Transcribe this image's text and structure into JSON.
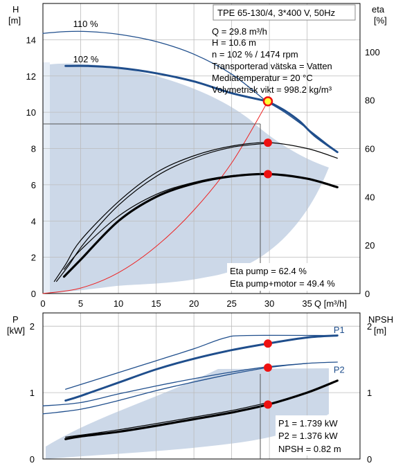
{
  "colors": {
    "region_fill": "#ccd8e8",
    "region_light": "#e6edf6",
    "curve_blue": "#1f4e8c",
    "curve_black": "#000000",
    "system_curve": "#ee2222",
    "marker_red": "#ee1111",
    "marker_yellow": "#ffff33",
    "grid": "#bbbbbb"
  },
  "chart_data": [
    {
      "id": "top",
      "type": "line",
      "title": "TPE 65-130/4, 3*400 V, 50Hz",
      "y_left_label": [
        "H",
        "[m]"
      ],
      "y_right_label": [
        "eta",
        "[%]"
      ],
      "xlabel": "Q [m³/h]",
      "xlim": [
        0,
        42
      ],
      "x_ticks": [
        0,
        5,
        10,
        15,
        20,
        25,
        30,
        35
      ],
      "ylim_left": [
        0,
        16
      ],
      "y_left_ticks": [
        0,
        2,
        4,
        6,
        8,
        10,
        12,
        14
      ],
      "ylim_right": [
        0,
        120
      ],
      "y_right_ticks": [
        0,
        20,
        40,
        60,
        80,
        100
      ],
      "grid": true,
      "info_lines": [
        "Q = 29.8 m³/h",
        "H = 10.6 m",
        "n = 102 % / 1474 rpm",
        "Transporterad vätska = Vatten",
        "Mediatemperatur = 20 °C",
        "Volymetrisk vikt = 998.2 kg/m³"
      ],
      "eta_lines": [
        "Eta pump = 62.4 %",
        "Eta pump+motor = 49.4 %"
      ],
      "curve_labels": [
        {
          "text": "110 %",
          "x": 4,
          "y": 14.7
        },
        {
          "text": "102 %",
          "x": 4,
          "y": 12.75
        }
      ],
      "series": [
        {
          "name": "110 %",
          "axis": "left",
          "style": "blue-thin",
          "x": [
            0,
            3,
            6,
            10,
            15,
            20,
            25,
            29.6
          ],
          "y": [
            14.35,
            14.45,
            14.45,
            14.3,
            13.9,
            13.2,
            12.1,
            10.6
          ]
        },
        {
          "name": "102 %",
          "axis": "left",
          "style": "blue-thick",
          "x": [
            3,
            6,
            10,
            15,
            20,
            25,
            29.8
          ],
          "y": [
            12.55,
            12.55,
            12.45,
            12.15,
            11.7,
            11.05,
            10.6
          ]
        },
        {
          "axis": "left",
          "style": "blue-thick",
          "x": [
            29.8,
            32,
            34,
            36,
            39
          ],
          "y": [
            10.6,
            10.1,
            9.5,
            8.7,
            7.8
          ]
        },
        {
          "axis": "left",
          "style": "blue-thin",
          "x": [
            29.6,
            32,
            35,
            39
          ],
          "y": [
            10.6,
            10.0,
            9.1,
            7.8
          ]
        },
        {
          "axis": "left",
          "style": "red-thin",
          "x": [
            0,
            5,
            10,
            15,
            20,
            25,
            29.8
          ],
          "y": [
            0,
            0.3,
            1.15,
            2.6,
            4.6,
            7.2,
            10.6
          ]
        },
        {
          "axis": "right",
          "style": "black-thin",
          "x": [
            1.5,
            3,
            5,
            10,
            15,
            20,
            25,
            30,
            35,
            39
          ],
          "y": [
            5,
            12,
            22,
            38,
            50,
            57,
            61,
            62.4,
            60,
            56
          ]
        },
        {
          "axis": "right",
          "style": "black-thin",
          "x": [
            1.8,
            3.5,
            5.5,
            10,
            15,
            20,
            25,
            30
          ],
          "y": [
            5,
            12,
            21,
            36.5,
            48.5,
            56,
            60.5,
            62.2
          ]
        },
        {
          "axis": "right",
          "style": "black-thick",
          "x": [
            2.8,
            5,
            10,
            15,
            20,
            25,
            30,
            35,
            39
          ],
          "y": [
            7,
            14,
            30,
            40,
            45.5,
            48.5,
            49.4,
            47.5,
            44
          ]
        },
        {
          "axis": "right",
          "style": "black-thin",
          "x": [
            2.8,
            5,
            10,
            15,
            20,
            25,
            30
          ],
          "y": [
            10,
            18,
            32,
            41,
            46,
            48.8,
            49.6
          ]
        }
      ],
      "operating_point": {
        "x": 29.8,
        "y": 10.6
      },
      "eta_points": [
        {
          "x": 29.8,
          "y": 62.4
        },
        {
          "x": 29.8,
          "y": 49.4
        }
      ]
    },
    {
      "id": "bottom",
      "type": "line",
      "y_left_label": [
        "P",
        "[kW]"
      ],
      "y_right_label": [
        "NPSH",
        "[m]"
      ],
      "xlim": [
        0,
        42
      ],
      "ylim_left": [
        0,
        2.2
      ],
      "y_left_ticks": [
        0,
        1,
        2
      ],
      "ylim_right": [
        0,
        2.2
      ],
      "y_right_ticks": [
        0,
        1,
        2
      ],
      "grid": true,
      "value_lines": [
        "P1 = 1.739 kW",
        "P2 = 1.376 kW",
        "NPSH = 0.82 m"
      ],
      "curve_labels": [
        {
          "text": "P1",
          "x": 38.5,
          "y": 1.9
        },
        {
          "text": "P2",
          "x": 38.5,
          "y": 1.3
        }
      ],
      "series": [
        {
          "name": "P1",
          "style": "blue-thick",
          "x": [
            3,
            5,
            10,
            15,
            20,
            25,
            29.8,
            35,
            39
          ],
          "y": [
            0.88,
            0.95,
            1.15,
            1.35,
            1.51,
            1.64,
            1.739,
            1.83,
            1.86
          ]
        },
        {
          "style": "blue-thin",
          "x": [
            3,
            10,
            15,
            20,
            24,
            27,
            39
          ],
          "y": [
            1.05,
            1.3,
            1.48,
            1.66,
            1.82,
            1.86,
            1.86
          ]
        },
        {
          "style": "blue-thin",
          "x": [
            0,
            5,
            10,
            15,
            20,
            25,
            29.8,
            35
          ],
          "y": [
            0.8,
            0.85,
            0.98,
            1.1,
            1.21,
            1.31,
            1.39,
            1.44
          ]
        },
        {
          "name": "P2",
          "style": "blue-thin",
          "x": [
            0,
            5,
            10,
            15,
            20,
            25,
            29.8,
            35,
            39
          ],
          "y": [
            0.68,
            0.75,
            0.88,
            1.03,
            1.16,
            1.28,
            1.376,
            1.44,
            1.46
          ]
        },
        {
          "style": "black-thick",
          "x": [
            3,
            5,
            10,
            15,
            20,
            25,
            29.8,
            35,
            39
          ],
          "y": [
            0.3,
            0.34,
            0.41,
            0.5,
            0.6,
            0.7,
            0.82,
            1.0,
            1.18
          ]
        },
        {
          "style": "black-thin",
          "x": [
            3,
            10,
            20,
            25,
            29.8
          ],
          "y": [
            0.33,
            0.44,
            0.63,
            0.73,
            0.85
          ]
        }
      ],
      "markers": [
        {
          "x": 29.8,
          "y": 1.739
        },
        {
          "x": 29.8,
          "y": 1.376
        },
        {
          "x": 29.8,
          "y": 0.82
        }
      ]
    }
  ]
}
